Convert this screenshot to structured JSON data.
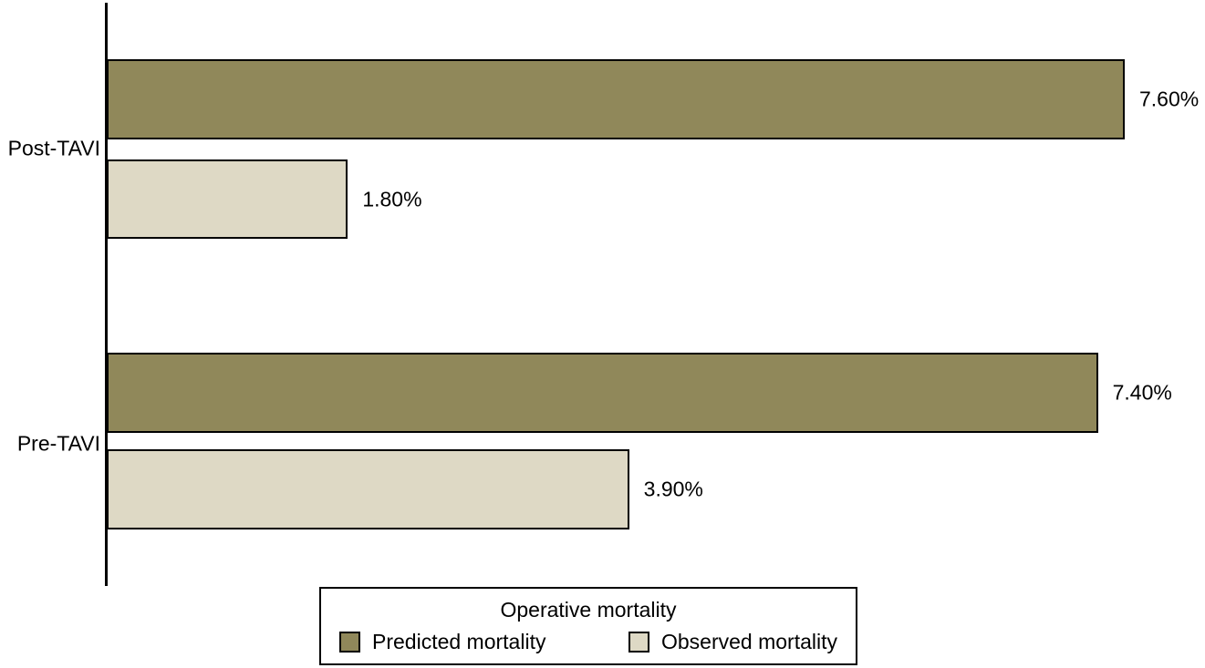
{
  "chart_data": {
    "type": "bar",
    "orientation": "horizontal",
    "categories": [
      "Post-TAVI",
      "Pre-TAVI"
    ],
    "series": [
      {
        "name": "Predicted mortality",
        "color": "#90885A",
        "values": [
          7.6,
          7.4
        ],
        "data_labels": [
          "7.60%",
          "7.40%"
        ]
      },
      {
        "name": "Observed mortality",
        "color": "#DED9C5",
        "values": [
          1.8,
          3.9
        ],
        "data_labels": [
          "1.80%",
          "3.90%"
        ]
      }
    ],
    "xlim": [
      0,
      7.6
    ],
    "grid": false,
    "axis_color": "#000000",
    "bar_border_color": "#000000",
    "legend": {
      "position": "bottom",
      "title": "Operative mortality",
      "entries": [
        "Predicted mortality",
        "Observed mortality"
      ]
    }
  }
}
